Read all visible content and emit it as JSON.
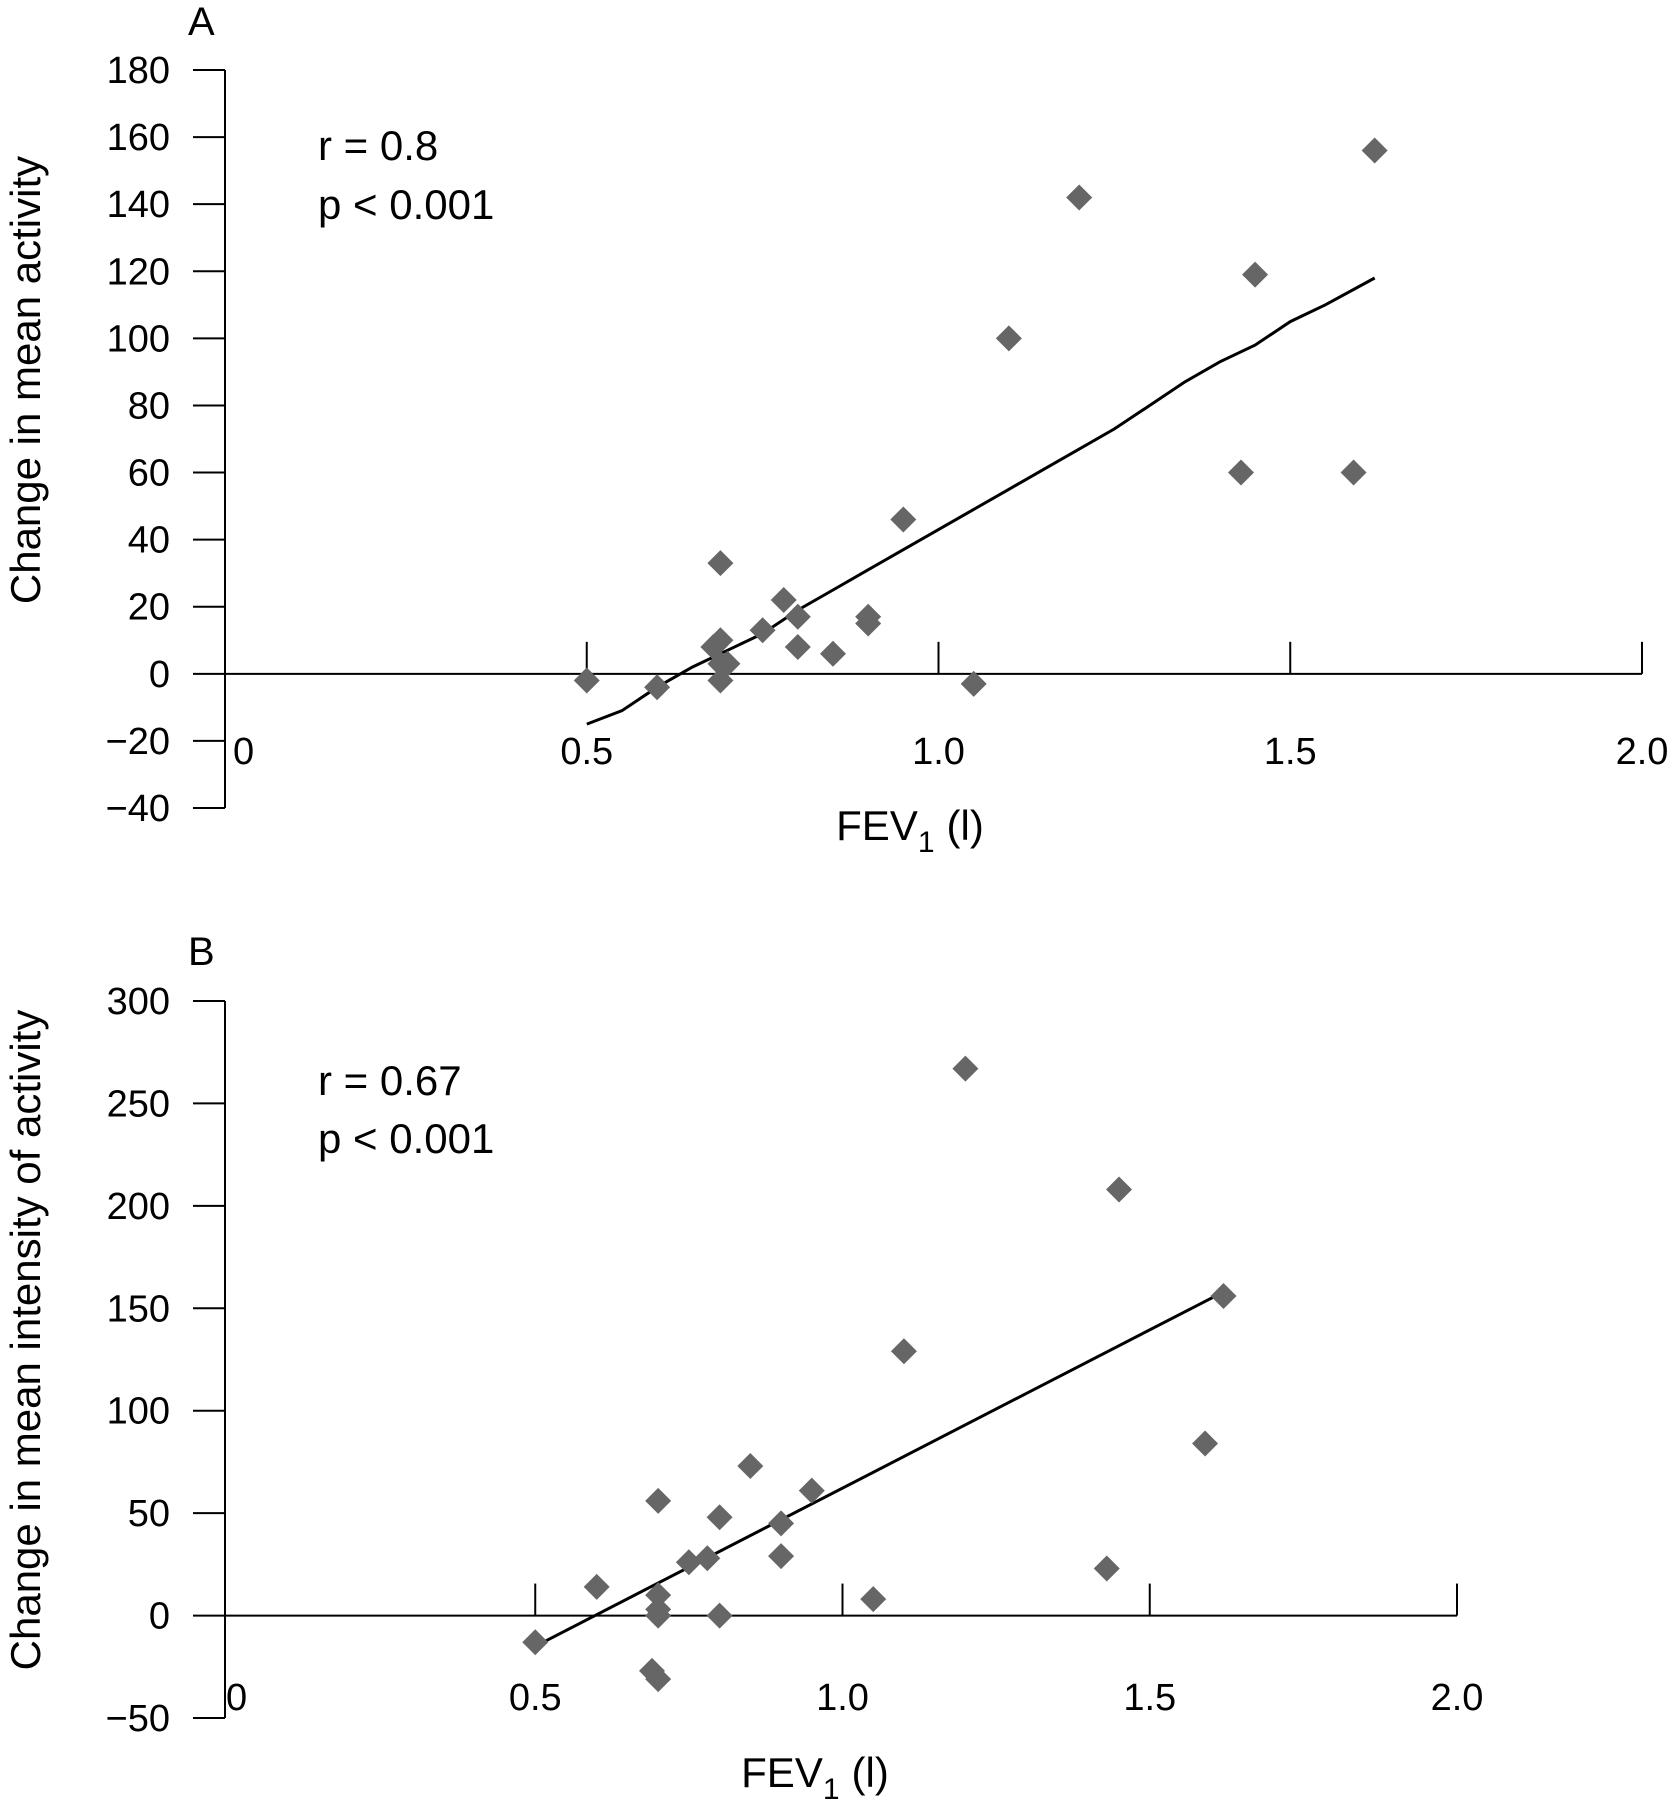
{
  "chart_data": [
    {
      "type": "scatter",
      "panel_label": "A",
      "ylabel": "Change in mean activity",
      "xlabel_main": "FEV",
      "xlabel_sub": "1",
      "xlabel_suffix": "(l)",
      "annotations": [
        "r = 0.8",
        "p < 0.001"
      ],
      "xlim": [
        0,
        2.0
      ],
      "ylim": [
        -40,
        180
      ],
      "xticks": [
        0,
        0.5,
        1.0,
        1.5,
        2.0
      ],
      "xtick_labels": [
        "0",
        "0.5",
        "1.0",
        "1.5",
        "2.0"
      ],
      "yticks": [
        -40,
        -20,
        0,
        20,
        40,
        60,
        80,
        100,
        120,
        140,
        160,
        180
      ],
      "ytick_labels": [
        "−40",
        "−20",
        "0",
        "20",
        "40",
        "60",
        "80",
        "100",
        "120",
        "140",
        "160",
        "180"
      ],
      "marker_color": "#666666",
      "points": [
        [
          0.5,
          -2
        ],
        [
          0.6,
          -4
        ],
        [
          0.68,
          8
        ],
        [
          0.69,
          10
        ],
        [
          0.69,
          33
        ],
        [
          0.69,
          3
        ],
        [
          0.7,
          3
        ],
        [
          0.69,
          -2
        ],
        [
          0.75,
          13
        ],
        [
          0.78,
          22
        ],
        [
          0.8,
          17
        ],
        [
          0.8,
          8
        ],
        [
          0.85,
          6
        ],
        [
          0.9,
          17
        ],
        [
          0.9,
          15
        ],
        [
          0.95,
          46
        ],
        [
          1.05,
          -3
        ],
        [
          1.1,
          100
        ],
        [
          1.2,
          142
        ],
        [
          1.43,
          60
        ],
        [
          1.45,
          119
        ],
        [
          1.59,
          60
        ],
        [
          1.62,
          156
        ]
      ],
      "fit_line": [
        [
          0.5,
          -15
        ],
        [
          0.55,
          -11
        ],
        [
          0.6,
          -4
        ],
        [
          0.65,
          2
        ],
        [
          0.7,
          7
        ],
        [
          0.75,
          12
        ],
        [
          0.8,
          19
        ],
        [
          0.85,
          25
        ],
        [
          0.9,
          31
        ],
        [
          0.95,
          37
        ],
        [
          1.0,
          43
        ],
        [
          1.05,
          49
        ],
        [
          1.1,
          55
        ],
        [
          1.15,
          61
        ],
        [
          1.2,
          67
        ],
        [
          1.25,
          73
        ],
        [
          1.3,
          80
        ],
        [
          1.35,
          87
        ],
        [
          1.4,
          93
        ],
        [
          1.45,
          98
        ],
        [
          1.5,
          105
        ],
        [
          1.55,
          110
        ],
        [
          1.62,
          118
        ]
      ]
    },
    {
      "type": "scatter",
      "panel_label": "B",
      "ylabel": "Change in mean intensity of activity",
      "xlabel_main": "FEV",
      "xlabel_sub": "1",
      "xlabel_suffix": "(l)",
      "annotations": [
        "r = 0.67",
        "p < 0.001"
      ],
      "xlim": [
        0,
        2.0
      ],
      "ylim": [
        -50,
        300
      ],
      "xticks": [
        0,
        0.5,
        1.0,
        1.5,
        2.0
      ],
      "xtick_labels": [
        "0",
        "0.5",
        "1.0",
        "1.5",
        "2.0"
      ],
      "yticks": [
        -50,
        0,
        50,
        100,
        150,
        200,
        250,
        300
      ],
      "ytick_labels": [
        "−50",
        "0",
        "50",
        "100",
        "150",
        "200",
        "250",
        "300"
      ],
      "marker_color": "#666666",
      "points": [
        [
          0.5,
          -13
        ],
        [
          0.6,
          14
        ],
        [
          0.69,
          -27
        ],
        [
          0.7,
          -31
        ],
        [
          0.7,
          56
        ],
        [
          0.7,
          10
        ],
        [
          0.7,
          3
        ],
        [
          0.7,
          0
        ],
        [
          0.75,
          26
        ],
        [
          0.78,
          28
        ],
        [
          0.8,
          48
        ],
        [
          0.8,
          0
        ],
        [
          0.85,
          73
        ],
        [
          0.9,
          45
        ],
        [
          0.9,
          29
        ],
        [
          0.95,
          61
        ],
        [
          1.05,
          8
        ],
        [
          1.1,
          129
        ],
        [
          1.2,
          267
        ],
        [
          1.43,
          23
        ],
        [
          1.45,
          208
        ],
        [
          1.59,
          84
        ],
        [
          1.62,
          156
        ]
      ],
      "fit_line": [
        [
          0.5,
          -15
        ],
        [
          1.62,
          158
        ]
      ]
    }
  ]
}
